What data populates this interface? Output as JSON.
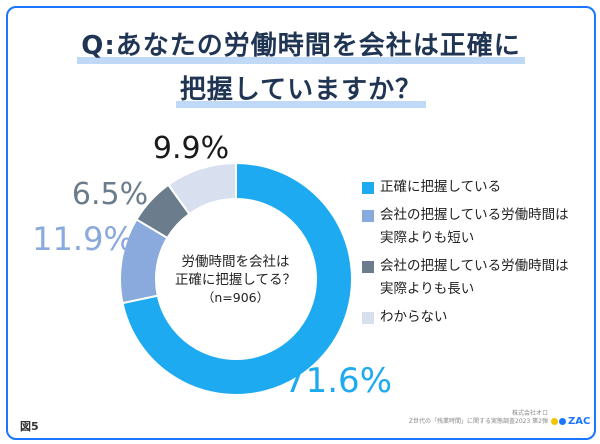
{
  "title_lines": [
    "Q:あなたの労働時間を会社は正確に",
    "把握していますか？"
  ],
  "center_text": [
    "労働時間を会社は",
    "正確に把握してる？",
    "（n=906）"
  ],
  "figure_label": "図5",
  "source_lines": [
    "株式会社オロ",
    "Z世代の「残業時間」に関する実態調査2023 第2弾"
  ],
  "logo_text": "ZAC",
  "colors": {
    "accent": "#1a75ff",
    "title": "#1f3553",
    "title_underline": "#bfd9f7",
    "logo_dot_1": "#f5c400",
    "logo_dot_2": "#1a75ff"
  },
  "chart_data": {
    "type": "donut",
    "legend_position": "right",
    "categories": [
      "正確に把握している",
      "会社の把握している労働時間は実際よりも短い",
      "会社の把握している労働時間は実際よりも長い",
      "わからない"
    ],
    "legend_lines": [
      [
        "正確に把握している"
      ],
      [
        "会社の把握している労働時間は",
        "実際よりも短い"
      ],
      [
        "会社の把握している労働時間は",
        "実際よりも長い"
      ],
      [
        "わからない"
      ]
    ],
    "values": [
      71.6,
      11.9,
      6.5,
      9.9
    ],
    "labels": [
      "71.6%",
      "11.9%",
      "6.5%",
      "9.9%"
    ],
    "colors": [
      "#1daaf0",
      "#8aa9dc",
      "#6b7d8c",
      "#d8e0f0"
    ],
    "label_colors": [
      "#1daaf0",
      "#8aa9dc",
      "#6b7d8c",
      "#1a1a1a"
    ]
  }
}
